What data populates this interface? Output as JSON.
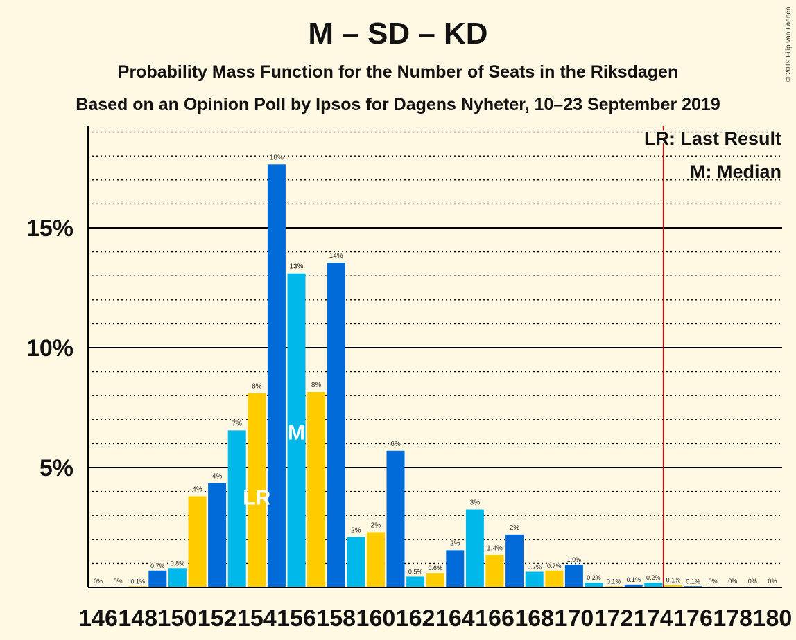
{
  "header": {
    "title": "M – SD – KD",
    "subtitle": "Probability Mass Function for the Number of Seats in the Riksdagen",
    "subtitle2": "Based on an Opinion Poll by Ipsos for Dagens Nyheter, 10–23 September 2019",
    "copyright": "© 2019 Filip van Laenen"
  },
  "legend": {
    "last_result": "LR: Last Result",
    "median": "M: Median"
  },
  "markers": {
    "last_result_label": "LR",
    "last_result_seat": 154,
    "median_label": "M",
    "median_seat": 156,
    "last_result_line_x": 174.5,
    "last_result_line_color": "#e00000"
  },
  "colors": {
    "dark_blue": "#006bd8",
    "light_blue": "#00b9ea",
    "yellow": "#ffcc00",
    "background": "#fff9e3"
  },
  "chart_data": {
    "type": "bar",
    "xlabel": "",
    "ylabel": "",
    "ylim": [
      0,
      19.3
    ],
    "grid": "dotted every 1%, solid every 5%",
    "y_ticks": [
      {
        "value": 5,
        "label": "5%"
      },
      {
        "value": 10,
        "label": "10%"
      },
      {
        "value": 15,
        "label": "15%"
      }
    ],
    "x_ticks": [
      "146",
      "148",
      "150",
      "152",
      "154",
      "156",
      "158",
      "160",
      "162",
      "164",
      "166",
      "168",
      "170",
      "172",
      "174",
      "176",
      "178",
      "180"
    ],
    "bars": [
      {
        "seat": 146,
        "value": 0,
        "label": "0%",
        "color": "#00b9ea"
      },
      {
        "seat": 147,
        "value": 0,
        "label": "0%",
        "color": "#ffcc00"
      },
      {
        "seat": 148,
        "value": 0.05,
        "label": "0.1%",
        "color": "#ffcc00"
      },
      {
        "seat": 149,
        "value": 0.7,
        "label": "0.7%",
        "color": "#006bd8"
      },
      {
        "seat": 150,
        "value": 0.8,
        "label": "0.8%",
        "color": "#00b9ea"
      },
      {
        "seat": 151,
        "value": 3.8,
        "label": "4%",
        "color": "#ffcc00"
      },
      {
        "seat": 152,
        "value": 4.35,
        "label": "4%",
        "color": "#006bd8"
      },
      {
        "seat": 153,
        "value": 6.55,
        "label": "7%",
        "color": "#00b9ea"
      },
      {
        "seat": 154,
        "value": 8.1,
        "label": "8%",
        "color": "#ffcc00"
      },
      {
        "seat": 155,
        "value": 17.65,
        "label": "18%",
        "color": "#006bd8"
      },
      {
        "seat": 156,
        "value": 13.1,
        "label": "13%",
        "color": "#00b9ea"
      },
      {
        "seat": 157,
        "value": 8.15,
        "label": "8%",
        "color": "#ffcc00"
      },
      {
        "seat": 158,
        "value": 13.55,
        "label": "14%",
        "color": "#006bd8"
      },
      {
        "seat": 159,
        "value": 2.1,
        "label": "2%",
        "color": "#00b9ea"
      },
      {
        "seat": 160,
        "value": 2.3,
        "label": "2%",
        "color": "#ffcc00"
      },
      {
        "seat": 161,
        "value": 5.7,
        "label": "6%",
        "color": "#006bd8"
      },
      {
        "seat": 162,
        "value": 0.45,
        "label": "0.5%",
        "color": "#00b9ea"
      },
      {
        "seat": 163,
        "value": 0.6,
        "label": "0.6%",
        "color": "#ffcc00"
      },
      {
        "seat": 164,
        "value": 1.55,
        "label": "2%",
        "color": "#006bd8"
      },
      {
        "seat": 165,
        "value": 3.25,
        "label": "3%",
        "color": "#00b9ea"
      },
      {
        "seat": 166,
        "value": 1.35,
        "label": "1.4%",
        "color": "#ffcc00"
      },
      {
        "seat": 167,
        "value": 2.2,
        "label": "2%",
        "color": "#006bd8"
      },
      {
        "seat": 168,
        "value": 0.65,
        "label": "0.7%",
        "color": "#00b9ea"
      },
      {
        "seat": 169,
        "value": 0.7,
        "label": "0.7%",
        "color": "#ffcc00"
      },
      {
        "seat": 170,
        "value": 0.95,
        "label": "1.0%",
        "color": "#006bd8"
      },
      {
        "seat": 171,
        "value": 0.2,
        "label": "0.2%",
        "color": "#00b9ea"
      },
      {
        "seat": 172,
        "value": 0.05,
        "label": "0.1%",
        "color": "#ffcc00"
      },
      {
        "seat": 173,
        "value": 0.12,
        "label": "0.1%",
        "color": "#006bd8"
      },
      {
        "seat": 174,
        "value": 0.2,
        "label": "0.2%",
        "color": "#00b9ea"
      },
      {
        "seat": 175,
        "value": 0.1,
        "label": "0.1%",
        "color": "#ffcc00"
      },
      {
        "seat": 176,
        "value": 0.05,
        "label": "0.1%",
        "color": "#006bd8"
      },
      {
        "seat": 177,
        "value": 0,
        "label": "0%",
        "color": "#00b9ea"
      },
      {
        "seat": 178,
        "value": 0,
        "label": "0%",
        "color": "#ffcc00"
      },
      {
        "seat": 179,
        "value": 0,
        "label": "0%",
        "color": "#006bd8"
      },
      {
        "seat": 180,
        "value": 0,
        "label": "0%",
        "color": "#00b9ea"
      }
    ]
  }
}
